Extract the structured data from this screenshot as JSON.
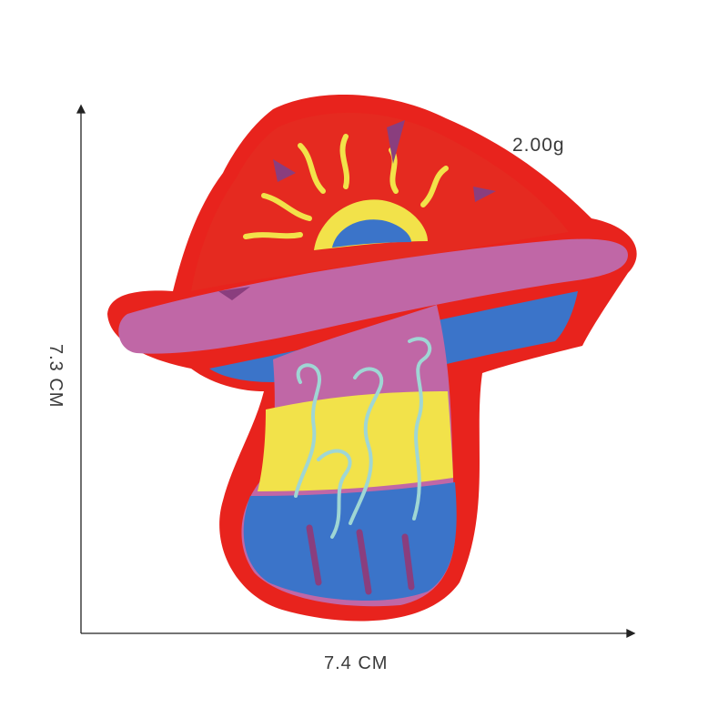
{
  "weight": "2.00g",
  "width": "7.4 CM",
  "height": "7.3 CM",
  "colors": {
    "patch_border": "#e8231d",
    "cap_red": "#e52a20",
    "brim_pink": "#c067a6",
    "blue": "#3b74c9",
    "yellow": "#f2e24a",
    "aqua": "#9fd6d4",
    "purple": "#8a3e7e"
  }
}
